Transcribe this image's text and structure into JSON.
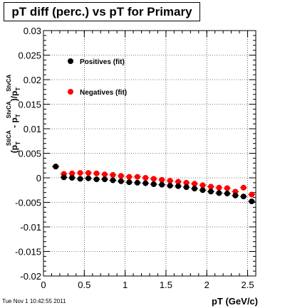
{
  "timestamp": "Tue Nov  1 10:42:55 2011",
  "chart_data": {
    "type": "scatter",
    "title": "pT diff (perc.) vs pT for Primary",
    "xlabel": "pT (GeV/c)",
    "ylabel": "(p_T^StiCA - p_T^StvCA)/p_T^StvCA",
    "ylabel_parts": {
      "open": "(p",
      "sub1": "T",
      "sup1": "StiCA",
      "mid": " - p",
      "sub2": "T",
      "sup2": "StvCA",
      "close": ")/p",
      "sub3": "T",
      "sup3": "StvCA"
    },
    "xlim": [
      0,
      2.6
    ],
    "ylim": [
      -0.02,
      0.03
    ],
    "xticks": [
      0,
      0.5,
      1,
      1.5,
      2,
      2.5
    ],
    "xtick_labels": [
      "0",
      "0.5",
      "1",
      "1.5",
      "2",
      "2.5"
    ],
    "yticks": [
      -0.02,
      -0.015,
      -0.01,
      -0.005,
      0,
      0.005,
      0.01,
      0.015,
      0.02,
      0.025,
      0.03
    ],
    "ytick_labels": [
      "-0.02",
      "-0.015",
      "-0.01",
      "-0.005",
      "0",
      "0.005",
      "0.01",
      "0.015",
      "0.02",
      "0.025",
      "0.03"
    ],
    "grid": true,
    "legend_position": "top-left",
    "series": [
      {
        "name": "Positives (fit)",
        "color": "#000000",
        "x": [
          0.15,
          0.25,
          0.35,
          0.45,
          0.55,
          0.65,
          0.75,
          0.85,
          0.95,
          1.05,
          1.15,
          1.25,
          1.35,
          1.45,
          1.55,
          1.65,
          1.75,
          1.85,
          1.95,
          2.05,
          2.15,
          2.25,
          2.35,
          2.45,
          2.55
        ],
        "y": [
          0.0023,
          0.0001,
          0.0,
          -0.0002,
          -0.0001,
          -0.0003,
          -0.0003,
          -0.0005,
          -0.0007,
          -0.0009,
          -0.001,
          -0.0011,
          -0.0013,
          -0.0014,
          -0.0016,
          -0.0017,
          -0.0019,
          -0.0022,
          -0.0025,
          -0.0028,
          -0.0031,
          -0.0032,
          -0.0036,
          -0.0038,
          -0.0048
        ]
      },
      {
        "name": "Negatives (fit)",
        "color": "#ff0000",
        "x": [
          0.15,
          0.25,
          0.35,
          0.45,
          0.55,
          0.65,
          0.75,
          0.85,
          0.95,
          1.05,
          1.15,
          1.25,
          1.35,
          1.45,
          1.55,
          1.65,
          1.75,
          1.85,
          1.95,
          2.05,
          2.15,
          2.25,
          2.35,
          2.45,
          2.55
        ],
        "y": [
          0.0023,
          0.0008,
          0.0009,
          0.001,
          0.001,
          0.0009,
          0.0007,
          0.0006,
          0.0004,
          0.0002,
          0.0002,
          0.0,
          -0.0002,
          -0.0004,
          -0.0006,
          -0.0008,
          -0.001,
          -0.0012,
          -0.0015,
          -0.0018,
          -0.002,
          -0.0021,
          -0.0028,
          -0.002,
          -0.0034
        ]
      }
    ]
  }
}
